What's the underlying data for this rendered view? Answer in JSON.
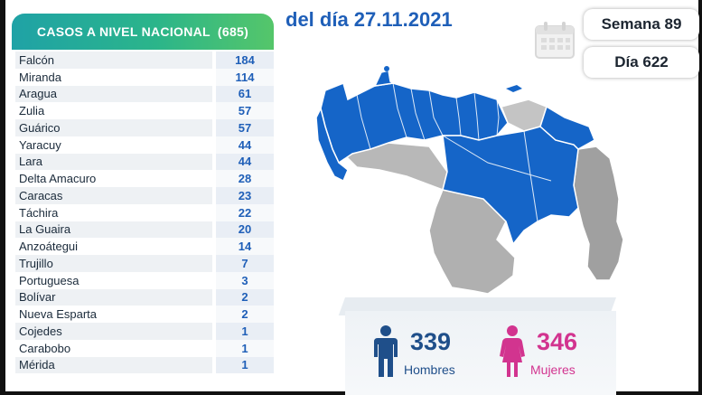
{
  "header": {
    "date_title": "del día 27.11.2021",
    "week": "Semana 89",
    "day": "Día 622"
  },
  "table": {
    "title": "CASOS A NIVEL NACIONAL",
    "total": "(685)",
    "rows": [
      {
        "name": "Falcón",
        "value": "184"
      },
      {
        "name": "Miranda",
        "value": "114"
      },
      {
        "name": "Aragua",
        "value": "61"
      },
      {
        "name": "Zulia",
        "value": "57"
      },
      {
        "name": "Guárico",
        "value": "57"
      },
      {
        "name": "Yaracuy",
        "value": "44"
      },
      {
        "name": "Lara",
        "value": "44"
      },
      {
        "name": "Delta Amacuro",
        "value": "28"
      },
      {
        "name": "Caracas",
        "value": "23"
      },
      {
        "name": "Táchira",
        "value": "22"
      },
      {
        "name": "La Guaira",
        "value": "20"
      },
      {
        "name": "Anzoátegui",
        "value": "14"
      },
      {
        "name": "Trujillo",
        "value": "7"
      },
      {
        "name": "Portuguesa",
        "value": "3"
      },
      {
        "name": "Bolívar",
        "value": "2"
      },
      {
        "name": "Nueva Esparta",
        "value": "2"
      },
      {
        "name": "Cojedes",
        "value": "1"
      },
      {
        "name": "Carabobo",
        "value": "1"
      },
      {
        "name": "Mérida",
        "value": "1"
      }
    ]
  },
  "gender": {
    "men_count": "339",
    "men_label": "Hombres",
    "women_count": "346",
    "women_label": "Mujeres"
  },
  "colors": {
    "accent_blue": "#1f5fb8",
    "map_blue": "#1565c8",
    "map_gray": "#b0b0b0",
    "women_pink": "#d2348f",
    "men_navy": "#1f4f8a"
  },
  "icons": [
    "calendar-icon",
    "man-icon",
    "woman-icon"
  ]
}
